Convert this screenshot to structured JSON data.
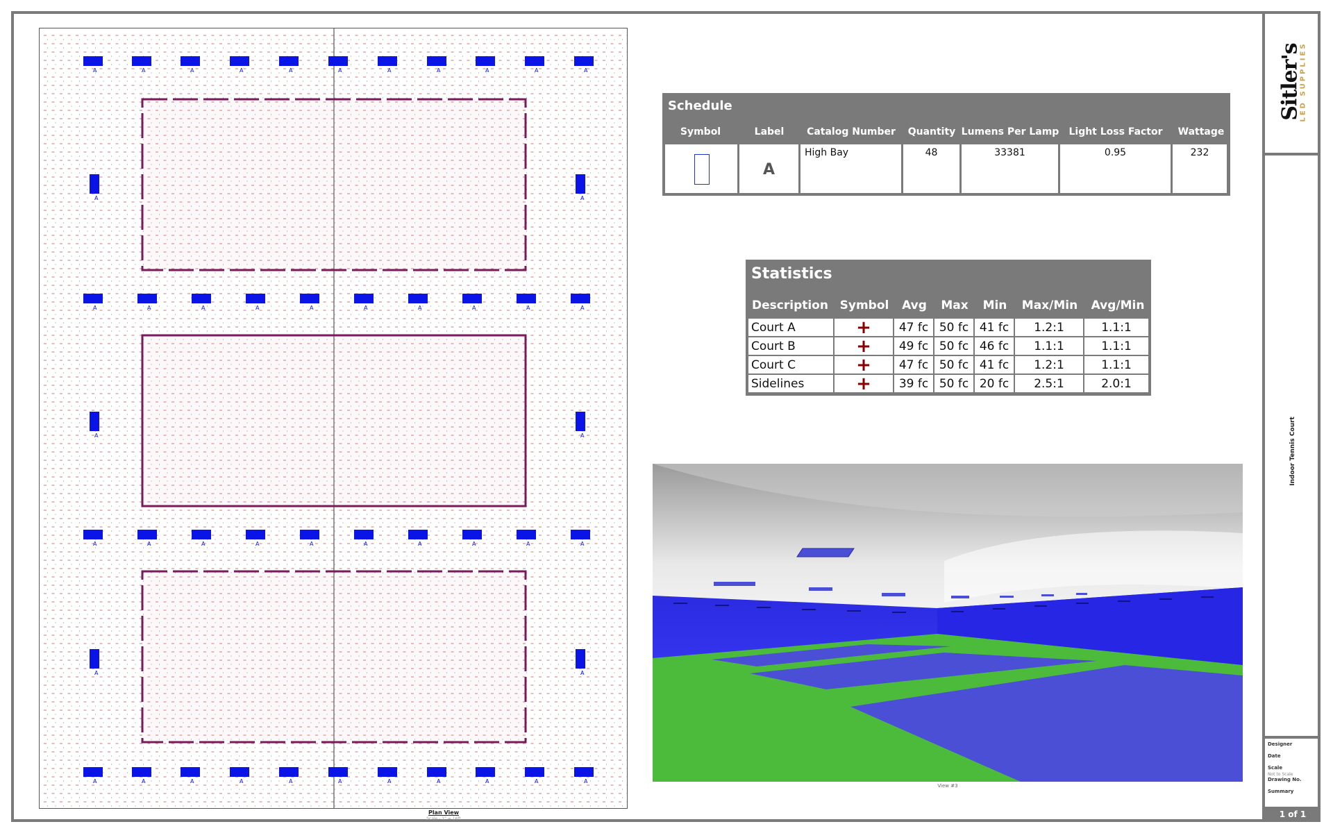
{
  "schedule": {
    "title": "Schedule",
    "headers": [
      "Symbol",
      "Label",
      "Catalog Number",
      "Quantity",
      "Lumens Per Lamp",
      "Light Loss Factor",
      "Wattage"
    ],
    "row": {
      "label": "A",
      "catalog": "High Bay",
      "quantity": "48",
      "lumens": "33381",
      "llf": "0.95",
      "wattage": "232"
    }
  },
  "statistics": {
    "title": "Statistics",
    "headers": [
      "Description",
      "Symbol",
      "Avg",
      "Max",
      "Min",
      "Max/Min",
      "Avg/Min"
    ],
    "rows": [
      {
        "description": "Court A",
        "symbol": "+",
        "avg": "47 fc",
        "max": "50 fc",
        "min": "41 fc",
        "maxmin": "1.2:1",
        "avgmin": "1.1:1"
      },
      {
        "description": "Court B",
        "symbol": "+",
        "avg": "49 fc",
        "max": "50 fc",
        "min": "46 fc",
        "maxmin": "1.1:1",
        "avgmin": "1.1:1"
      },
      {
        "description": "Court C",
        "symbol": "+",
        "avg": "47 fc",
        "max": "50 fc",
        "min": "41 fc",
        "maxmin": "1.2:1",
        "avgmin": "1.1:1"
      },
      {
        "description": "Sidelines",
        "symbol": "+",
        "avg": "39 fc",
        "max": "50 fc",
        "min": "20 fc",
        "maxmin": "2.5:1",
        "avgmin": "2.0:1"
      }
    ]
  },
  "title_block": {
    "logo_main": "Sitler's",
    "logo_sub": "LED SUPPLIES",
    "project_title": "Indoor Tennis Court",
    "fields": [
      "Designer",
      "Date",
      "Scale",
      "Not to Scale",
      "Drawing No.",
      "Summary"
    ],
    "page": "1 of 1"
  },
  "plan": {
    "caption": "Plan View",
    "scale_note": "Scale - 1\" = 16ft",
    "fixture_label": "A"
  },
  "render": {
    "caption": "View #3"
  },
  "colors": {
    "frame": "#7a7a7a",
    "fixture": "#0a14e6",
    "court_line": "#7a1a5a",
    "court_surface": "#4b4fd6",
    "floor": "#4cbb3c",
    "wall": "#1a1ad9",
    "plus": "#8a0000"
  }
}
